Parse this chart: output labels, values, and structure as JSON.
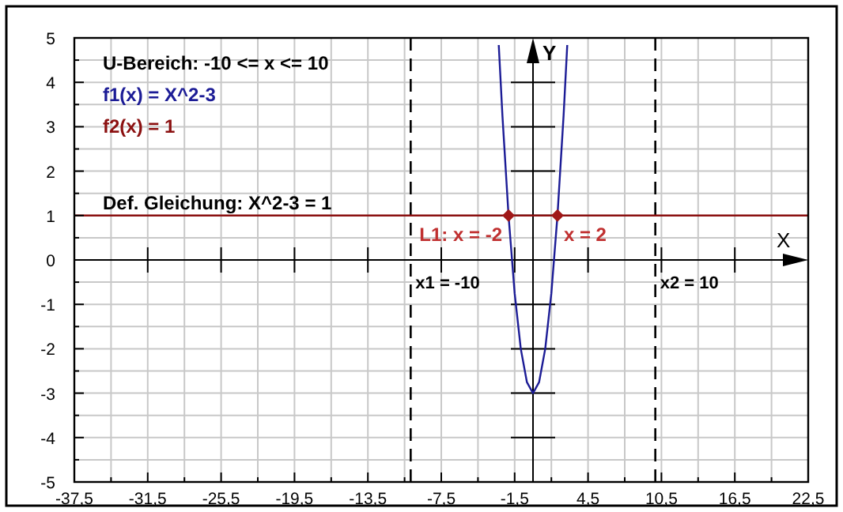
{
  "chart_data": {
    "type": "line",
    "xlabel": "X",
    "ylabel": "Y",
    "xlim": [
      -37.5,
      22.5
    ],
    "xticks": [
      {
        "value": -37.5,
        "label": "-37,5"
      },
      {
        "value": -34.5,
        "label": null
      },
      {
        "value": -31.5,
        "label": "-31,5"
      },
      {
        "value": -28.5,
        "label": null
      },
      {
        "value": -25.5,
        "label": "-25,5"
      },
      {
        "value": -22.5,
        "label": null
      },
      {
        "value": -19.5,
        "label": "-19,5"
      },
      {
        "value": -16.5,
        "label": null
      },
      {
        "value": -13.5,
        "label": "-13,5"
      },
      {
        "value": -10.5,
        "label": null
      },
      {
        "value": -7.5,
        "label": "-7,5"
      },
      {
        "value": -4.5,
        "label": null
      },
      {
        "value": -1.5,
        "label": "-1,5"
      },
      {
        "value": 1.5,
        "label": null
      },
      {
        "value": 4.5,
        "label": "4,5"
      },
      {
        "value": 7.5,
        "label": null
      },
      {
        "value": 10.5,
        "label": "10,5"
      },
      {
        "value": 13.5,
        "label": null
      },
      {
        "value": 16.5,
        "label": "16,5"
      },
      {
        "value": 19.5,
        "label": null
      },
      {
        "value": 22.5,
        "label": "22,5"
      }
    ],
    "ylim": [
      -5,
      5
    ],
    "yticks": [
      -5,
      {
        "value": -4.5,
        "label": null
      },
      -4,
      {
        "value": -3.5,
        "label": null
      },
      -3,
      {
        "value": -2.5,
        "label": null
      },
      -2,
      {
        "value": -1.5,
        "label": null
      },
      -1,
      {
        "value": -0.5,
        "label": null
      },
      0,
      {
        "value": 0.5,
        "label": null
      },
      1,
      {
        "value": 1.5,
        "label": null
      },
      2,
      {
        "value": 2.5,
        "label": null
      },
      3,
      {
        "value": 3.5,
        "label": null
      },
      4,
      {
        "value": 4.5,
        "label": null
      },
      5
    ],
    "grid": true,
    "legend": "top left",
    "series": [
      {
        "name": "f1(x) = X^2-3",
        "color": "#1c1c96",
        "x": [
          -2.8,
          -2.5,
          -2,
          -1.5,
          -1,
          -0.5,
          0,
          0.5,
          1,
          1.5,
          2,
          2.5,
          2.8
        ],
        "values": [
          4.84,
          3.25,
          1,
          -0.75,
          -2,
          -2.75,
          -3,
          -2.75,
          -2,
          -0.75,
          1,
          3.25,
          4.84
        ]
      },
      {
        "name": "f2(x) = 1",
        "color": "#8b1010",
        "x": [
          -37.5,
          22.5
        ],
        "values": [
          1,
          1
        ]
      },
      {
        "type": "scatter",
        "marker": "diamond",
        "color": "#a01818",
        "x": [
          -2,
          2
        ],
        "values": [
          1,
          1
        ]
      }
    ],
    "ref_lines": [
      {
        "axis": "x",
        "value": -10,
        "label": "x1 = -10",
        "line_style": "dashed",
        "color": "#000000"
      },
      {
        "axis": "x",
        "value": 10,
        "label": "x2 = 10",
        "line_style": "dashed",
        "color": "#000000"
      }
    ],
    "annotations": [
      "U-Bereich: -10 <= x <= 10",
      "Def. Gleichung: X^2-3 = 1",
      {
        "text": "L1: x = -2",
        "x": -2,
        "y": 1
      },
      {
        "text": "x = 2",
        "x": 2,
        "y": 1
      }
    ]
  }
}
